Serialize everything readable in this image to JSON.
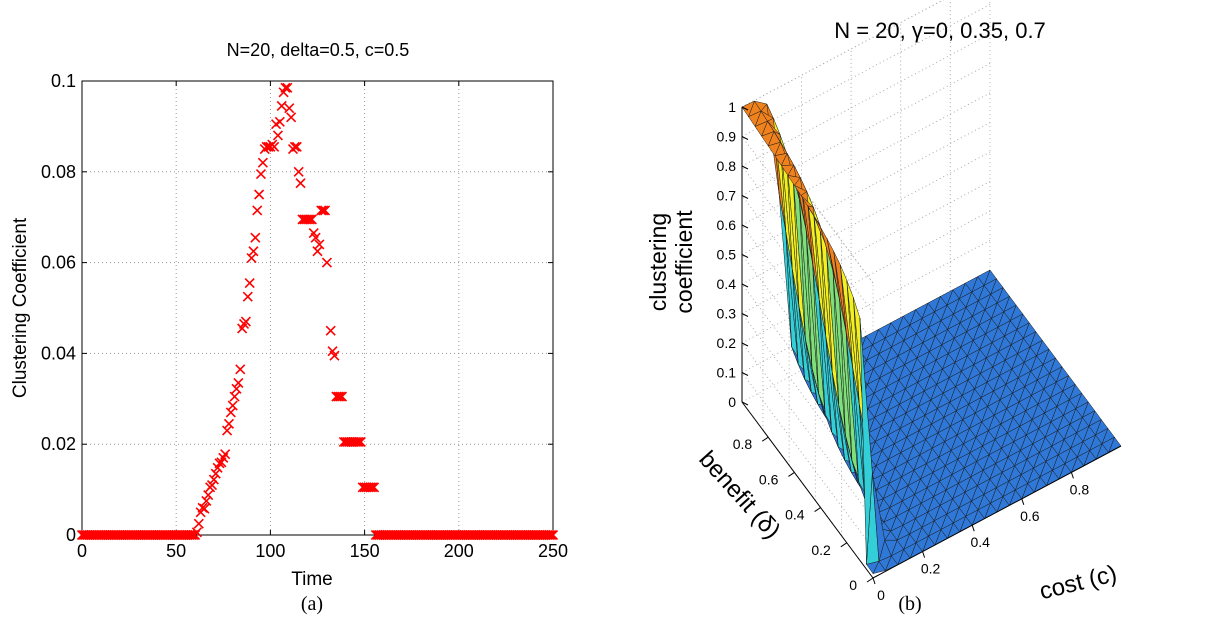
{
  "chart_data": [
    {
      "type": "scatter",
      "title": "N=20, delta=0.5, c=0.5",
      "xlabel": "Time",
      "ylabel": "Clustering Coefficient",
      "xlim": [
        0,
        250
      ],
      "ylim": [
        0,
        0.1
      ],
      "xticks": [
        "0",
        "50",
        "100",
        "150",
        "200",
        "250"
      ],
      "yticks": [
        "0",
        "0.02",
        "0.04",
        "0.06",
        "0.08",
        "0.1"
      ],
      "grid": true,
      "marker": "x",
      "color": "#ff0000",
      "caption": "(a)",
      "series": [
        {
          "rising": [
            [
              61,
              0.0006
            ],
            [
              62,
              0.0025
            ],
            [
              63,
              0.005
            ],
            [
              64,
              0.006
            ],
            [
              65,
              0.0058
            ],
            [
              66,
              0.0075
            ],
            [
              67,
              0.0088
            ],
            [
              68,
              0.0105
            ],
            [
              69,
              0.011
            ],
            [
              70,
              0.0122
            ],
            [
              71,
              0.0135
            ],
            [
              72,
              0.0148
            ],
            [
              73,
              0.0158
            ],
            [
              74,
              0.016
            ],
            [
              75,
              0.017
            ],
            [
              76,
              0.0178
            ],
            [
              77,
              0.023
            ],
            [
              78,
              0.0245
            ],
            [
              79,
              0.027
            ],
            [
              80,
              0.0285
            ],
            [
              81,
              0.0305
            ],
            [
              82,
              0.0322
            ],
            [
              83,
              0.0335
            ],
            [
              84,
              0.0365
            ],
            [
              85,
              0.0455
            ],
            [
              86,
              0.0465
            ],
            [
              87,
              0.047
            ],
            [
              88,
              0.0525
            ],
            [
              89,
              0.0555
            ],
            [
              90,
              0.061
            ],
            [
              91,
              0.0625
            ],
            [
              92,
              0.0655
            ],
            [
              93,
              0.0715
            ],
            [
              94,
              0.075
            ],
            [
              95,
              0.0795
            ],
            [
              96,
              0.082
            ],
            [
              97,
              0.085
            ],
            [
              98,
              0.0855
            ],
            [
              99,
              0.0855
            ],
            [
              100,
              0.0855
            ],
            [
              101,
              0.086
            ],
            [
              102,
              0.0855
            ],
            [
              103,
              0.0905
            ],
            [
              104,
              0.088
            ],
            [
              105,
              0.091
            ],
            [
              106,
              0.0945
            ],
            [
              107,
              0.0975
            ],
            [
              108,
              0.0985
            ],
            [
              109,
              0.0985
            ],
            [
              110,
              0.094
            ],
            [
              111,
              0.092
            ],
            [
              112,
              0.085
            ],
            [
              113,
              0.0855
            ],
            [
              114,
              0.0855
            ]
          ],
          "falling": [
            [
              115,
              0.08
            ],
            [
              116,
              0.0775
            ],
            [
              117,
              0.0695
            ],
            [
              118,
              0.0695
            ],
            [
              119,
              0.0695
            ],
            [
              120,
              0.0695
            ],
            [
              121,
              0.0695
            ],
            [
              122,
              0.0695
            ],
            [
              123,
              0.0665
            ],
            [
              124,
              0.0655
            ],
            [
              125,
              0.0625
            ],
            [
              126,
              0.064
            ],
            [
              127,
              0.0715
            ],
            [
              128,
              0.0715
            ],
            [
              129,
              0.0715
            ],
            [
              130,
              0.06
            ],
            [
              132,
              0.045
            ],
            [
              133,
              0.0405
            ],
            [
              134,
              0.0395
            ],
            [
              135,
              0.0305
            ],
            [
              136,
              0.0305
            ],
            [
              137,
              0.0305
            ],
            [
              138,
              0.0305
            ],
            [
              139,
              0.0205
            ],
            [
              140,
              0.0205
            ],
            [
              141,
              0.0205
            ],
            [
              142,
              0.0205
            ],
            [
              143,
              0.0205
            ],
            [
              144,
              0.0205
            ],
            [
              145,
              0.0205
            ],
            [
              146,
              0.0205
            ],
            [
              147,
              0.0205
            ],
            [
              148,
              0.0205
            ],
            [
              149,
              0.0105
            ],
            [
              150,
              0.0105
            ],
            [
              151,
              0.0105
            ],
            [
              152,
              0.0105
            ],
            [
              153,
              0.0105
            ],
            [
              154,
              0.0105
            ],
            [
              155,
              0.0105
            ]
          ],
          "zero_ranges": [
            [
              0,
              60
            ],
            [
              156,
              250
            ]
          ]
        }
      ]
    },
    {
      "type": "surface3d",
      "title": "N = 20, γ=0, 0.35, 0.7",
      "xlabel": "cost (c)",
      "ylabel": "benefit (δ)",
      "zlabel_line1": "clustering",
      "zlabel_line2": "coefficient",
      "x_ticks": [
        "0",
        "0.2",
        "0.4",
        "0.6",
        "0.8"
      ],
      "y_ticks": [
        "0",
        "0.2",
        "0.4",
        "0.6",
        "0.8"
      ],
      "z_ticks": [
        "0",
        "0.1",
        "0.2",
        "0.3",
        "0.4",
        "0.5",
        "0.6",
        "0.7",
        "0.8",
        "0.9",
        "1"
      ],
      "xlim": [
        0,
        1
      ],
      "ylim": [
        0,
        1
      ],
      "zlim": [
        0,
        1
      ],
      "colors": {
        "high": "#f0821e",
        "low": "#2f78d8",
        "mid_cyan": "#33cfd8",
        "mid_green": "#7fe07a",
        "mid_yellow": "#f2f020"
      },
      "caption": "(b)"
    }
  ]
}
